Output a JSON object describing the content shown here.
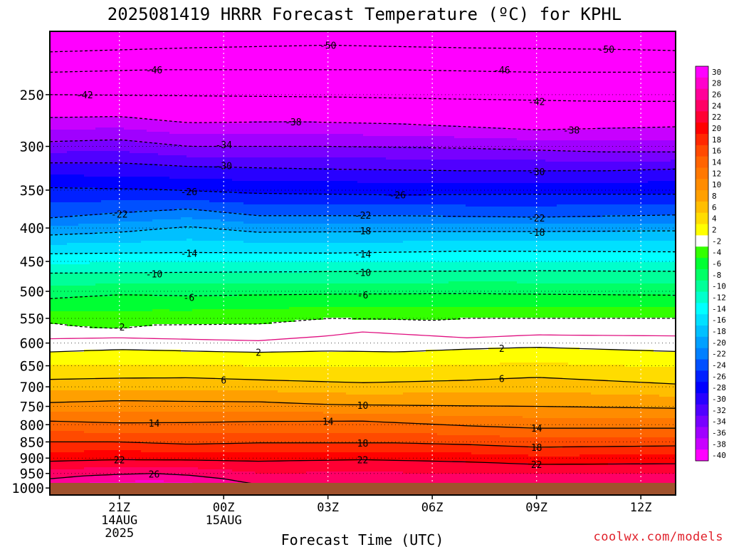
{
  "title": "2025081419 HRRR Forecast Temperature (ºC) for KPHL",
  "credit": "coolwx.com/models",
  "chart_data": {
    "type": "heatmap",
    "title": "2025081419 HRRR Forecast Temperature (ºC) for KPHL",
    "xlabel": "Forecast Time (UTC)",
    "ylabel": "",
    "x_unit": "hours after 19Z 14AUG 2025",
    "xlim": [
      0,
      18
    ],
    "ylim": [
      1025,
      200
    ],
    "y_scale": "log-pressure (hPa)",
    "x_ticks": [
      {
        "x": 2,
        "lines": [
          "21Z",
          "14AUG",
          "2025"
        ]
      },
      {
        "x": 5,
        "lines": [
          "00Z",
          "15AUG"
        ]
      },
      {
        "x": 8,
        "lines": [
          "03Z"
        ]
      },
      {
        "x": 11,
        "lines": [
          "06Z"
        ]
      },
      {
        "x": 14,
        "lines": [
          "09Z"
        ]
      },
      {
        "x": 17,
        "lines": [
          "12Z"
        ]
      }
    ],
    "y_ticks": [
      250,
      300,
      350,
      400,
      450,
      500,
      550,
      600,
      650,
      700,
      750,
      800,
      850,
      900,
      950,
      1000
    ],
    "grid": true,
    "colorbar": {
      "position": "right",
      "labels": [
        30,
        28,
        26,
        24,
        22,
        20,
        18,
        16,
        14,
        12,
        10,
        8,
        6,
        4,
        2,
        -2,
        -4,
        -6,
        -8,
        -10,
        -12,
        -14,
        -16,
        -18,
        -20,
        -22,
        -24,
        -26,
        -28,
        -30,
        -32,
        -34,
        -36,
        -38,
        -40
      ],
      "colors": [
        "#ff00ff",
        "#ff00cc",
        "#ff0099",
        "#ff0066",
        "#ff0033",
        "#ff0000",
        "#ff2800",
        "#ff4a00",
        "#ff6400",
        "#ff7800",
        "#ff8c00",
        "#ffa000",
        "#ffbe00",
        "#ffdc00",
        "#ffff00",
        "#ffffff",
        "#33ff00",
        "#00ff33",
        "#00ff66",
        "#00ff99",
        "#00ffcc",
        "#00ffff",
        "#00e0ff",
        "#00c0ff",
        "#00a0ff",
        "#0080ff",
        "#0050ff",
        "#0020ff",
        "#0000ff",
        "#2800ff",
        "#5000ff",
        "#7800ff",
        "#a000ff",
        "#c800ff",
        "#ff00ff"
      ]
    },
    "contours": [
      {
        "value": -50,
        "dashed": true,
        "color": "#000000",
        "points": [
          [
            0,
            215
          ],
          [
            4,
            212
          ],
          [
            8,
            210
          ],
          [
            12,
            212
          ],
          [
            16,
            213
          ],
          [
            18,
            214
          ]
        ],
        "labels": [
          [
            8,
            210
          ],
          [
            16,
            213
          ]
        ]
      },
      {
        "value": -46,
        "dashed": true,
        "color": "#000000",
        "points": [
          [
            0,
            231
          ],
          [
            3,
            229
          ],
          [
            6,
            229
          ],
          [
            10,
            229
          ],
          [
            14,
            231
          ],
          [
            18,
            231
          ]
        ],
        "labels": [
          [
            3,
            229
          ],
          [
            13,
            229
          ]
        ]
      },
      {
        "value": -42,
        "dashed": true,
        "color": "#000000",
        "points": [
          [
            0,
            250
          ],
          [
            4,
            251
          ],
          [
            8,
            252
          ],
          [
            12,
            254
          ],
          [
            16,
            256
          ],
          [
            18,
            256
          ]
        ],
        "labels": [
          [
            1,
            250
          ],
          [
            14,
            256
          ]
        ]
      },
      {
        "value": -38,
        "dashed": true,
        "color": "#000000",
        "points": [
          [
            0,
            271
          ],
          [
            2,
            270
          ],
          [
            4,
            276
          ],
          [
            7,
            275
          ],
          [
            10,
            277
          ],
          [
            14,
            283
          ],
          [
            18,
            280
          ]
        ],
        "labels": [
          [
            7,
            275
          ],
          [
            15,
            283
          ]
        ]
      },
      {
        "value": -34,
        "dashed": true,
        "color": "#000000",
        "points": [
          [
            0,
            295
          ],
          [
            2,
            293
          ],
          [
            4,
            300
          ],
          [
            8,
            300
          ],
          [
            12,
            302
          ],
          [
            16,
            306
          ],
          [
            18,
            306
          ]
        ],
        "labels": [
          [
            5,
            298
          ]
        ]
      },
      {
        "value": -30,
        "dashed": true,
        "color": "#000000",
        "points": [
          [
            0,
            318
          ],
          [
            2,
            318
          ],
          [
            4,
            322
          ],
          [
            8,
            325
          ],
          [
            12,
            327
          ],
          [
            16,
            327
          ],
          [
            18,
            325
          ]
        ],
        "labels": [
          [
            5,
            321
          ],
          [
            14,
            328
          ]
        ]
      },
      {
        "value": -26,
        "dashed": true,
        "color": "#000000",
        "points": [
          [
            0,
            347
          ],
          [
            3,
            349
          ],
          [
            6,
            354
          ],
          [
            10,
            356
          ],
          [
            14,
            355
          ],
          [
            18,
            355
          ]
        ],
        "labels": [
          [
            4,
            352
          ],
          [
            10,
            356
          ]
        ]
      },
      {
        "value": -22,
        "dashed": true,
        "color": "#000000",
        "points": [
          [
            0,
            386
          ],
          [
            2,
            379
          ],
          [
            4,
            374
          ],
          [
            6,
            383
          ],
          [
            10,
            383
          ],
          [
            14,
            385
          ],
          [
            18,
            382
          ]
        ],
        "labels": [
          [
            2,
            381
          ],
          [
            9,
            382
          ],
          [
            14,
            386
          ]
        ]
      },
      {
        "value": -18,
        "dashed": true,
        "color": "#000000",
        "points": [
          [
            0,
            410
          ],
          [
            2,
            406
          ],
          [
            4,
            398
          ],
          [
            6,
            406
          ],
          [
            10,
            405
          ],
          [
            14,
            405
          ],
          [
            18,
            404
          ]
        ],
        "labels": [
          [
            9,
            404
          ],
          [
            14,
            406
          ]
        ]
      },
      {
        "value": -14,
        "dashed": true,
        "color": "#000000",
        "points": [
          [
            0,
            438
          ],
          [
            4,
            436
          ],
          [
            8,
            437
          ],
          [
            12,
            434
          ],
          [
            18,
            435
          ]
        ],
        "labels": [
          [
            4,
            437
          ],
          [
            9,
            438
          ]
        ]
      },
      {
        "value": -10,
        "dashed": true,
        "color": "#000000",
        "points": [
          [
            0,
            469
          ],
          [
            3,
            468
          ],
          [
            6,
            467
          ],
          [
            10,
            466
          ],
          [
            14,
            465
          ],
          [
            18,
            466
          ]
        ],
        "labels": [
          [
            3,
            470
          ],
          [
            9,
            468
          ]
        ]
      },
      {
        "value": -6,
        "dashed": true,
        "color": "#000000",
        "points": [
          [
            0,
            513
          ],
          [
            2,
            506
          ],
          [
            4,
            508
          ],
          [
            8,
            505
          ],
          [
            12,
            504
          ],
          [
            18,
            507
          ]
        ],
        "labels": [
          [
            4,
            511
          ],
          [
            9,
            506
          ]
        ]
      },
      {
        "value": -2,
        "dashed": true,
        "color": "#000000",
        "points": [
          [
            0,
            559
          ],
          [
            1,
            567
          ],
          [
            2,
            570
          ],
          [
            3,
            563
          ],
          [
            6,
            561
          ],
          [
            8,
            550
          ],
          [
            10,
            552
          ],
          [
            11,
            554
          ],
          [
            12,
            550
          ],
          [
            18,
            550
          ]
        ],
        "labels": [
          [
            2,
            567
          ]
        ]
      },
      {
        "value": 0,
        "dashed": false,
        "color": "#e01080",
        "points": [
          [
            0,
            591
          ],
          [
            2,
            589
          ],
          [
            4,
            592
          ],
          [
            6,
            595
          ],
          [
            8,
            585
          ],
          [
            9,
            577
          ],
          [
            12,
            589
          ],
          [
            14,
            583
          ],
          [
            18,
            585
          ]
        ],
        "labels": []
      },
      {
        "value": 2,
        "dashed": false,
        "color": "#000000",
        "points": [
          [
            0,
            619
          ],
          [
            2,
            614
          ],
          [
            4,
            617
          ],
          [
            6,
            620
          ],
          [
            8,
            617
          ],
          [
            10,
            619
          ],
          [
            12,
            613
          ],
          [
            14,
            609
          ],
          [
            18,
            618
          ]
        ],
        "labels": [
          [
            6,
            620
          ],
          [
            13,
            611
          ]
        ]
      },
      {
        "value": 6,
        "dashed": false,
        "color": "#000000",
        "points": [
          [
            0,
            682
          ],
          [
            2,
            679
          ],
          [
            4,
            678
          ],
          [
            6,
            683
          ],
          [
            9,
            690
          ],
          [
            12,
            684
          ],
          [
            14,
            677
          ],
          [
            18,
            693
          ]
        ],
        "labels": [
          [
            5,
            683
          ],
          [
            13,
            680
          ]
        ]
      },
      {
        "value": 10,
        "dashed": false,
        "color": "#000000",
        "points": [
          [
            0,
            740
          ],
          [
            2,
            735
          ],
          [
            4,
            737
          ],
          [
            6,
            738
          ],
          [
            8,
            745
          ],
          [
            10,
            747
          ],
          [
            14,
            750
          ],
          [
            18,
            755
          ]
        ],
        "labels": [
          [
            9,
            747
          ]
        ]
      },
      {
        "value": 14,
        "dashed": false,
        "color": "#000000",
        "points": [
          [
            0,
            790
          ],
          [
            2,
            795
          ],
          [
            4,
            794
          ],
          [
            6,
            791
          ],
          [
            9,
            790
          ],
          [
            12,
            803
          ],
          [
            14,
            810
          ],
          [
            18,
            810
          ]
        ],
        "labels": [
          [
            3,
            795
          ],
          [
            8,
            790
          ],
          [
            14,
            810
          ]
        ]
      },
      {
        "value": 18,
        "dashed": false,
        "color": "#000000",
        "points": [
          [
            0,
            850
          ],
          [
            2,
            850
          ],
          [
            4,
            857
          ],
          [
            6,
            853
          ],
          [
            10,
            853
          ],
          [
            12,
            858
          ],
          [
            14,
            866
          ],
          [
            18,
            862
          ]
        ],
        "labels": [
          [
            9,
            853
          ],
          [
            14,
            866
          ]
        ]
      },
      {
        "value": 22,
        "dashed": false,
        "color": "#000000",
        "points": [
          [
            0,
            910
          ],
          [
            2,
            905
          ],
          [
            4,
            906
          ],
          [
            6,
            910
          ],
          [
            9,
            905
          ],
          [
            12,
            912
          ],
          [
            14,
            920
          ],
          [
            18,
            918
          ]
        ],
        "labels": [
          [
            2,
            905
          ],
          [
            9,
            905
          ],
          [
            14,
            920
          ]
        ]
      },
      {
        "value": 26,
        "dashed": false,
        "color": "#000000",
        "points": [
          [
            0,
            968
          ],
          [
            1,
            958
          ],
          [
            2,
            953
          ],
          [
            3,
            950
          ],
          [
            4,
            956
          ],
          [
            5,
            968
          ],
          [
            6,
            988
          ]
        ],
        "labels": [
          [
            3,
            952
          ]
        ]
      }
    ]
  }
}
